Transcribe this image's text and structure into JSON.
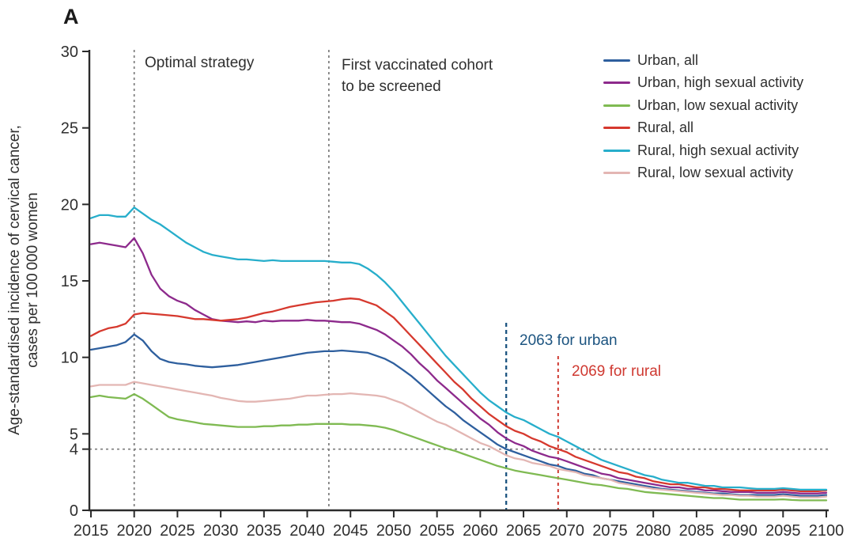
{
  "panel_label": "A",
  "colors": {
    "text": "#2f2f2f",
    "axis": "#2b2b2b",
    "gray_dash": "#7b7b7b",
    "urban_annotation": "#1c5480",
    "rural_annotation": "#cf3931"
  },
  "annotations": {
    "optimal_strategy": {
      "label": "Optimal strategy",
      "year": 2020
    },
    "first_screened": {
      "line1": "First vaccinated cohort",
      "line2": "to be screened",
      "year": 2042.5
    },
    "urban_elimination": {
      "label": "2063 for urban",
      "year": 2063
    },
    "rural_elimination": {
      "label": "2069 for rural",
      "year": 2069
    },
    "threshold_value": 4
  },
  "chart_data": {
    "type": "line",
    "title": "",
    "ylabel_line1": "Age-standardised incidence of cervical cancer,",
    "ylabel_line2": "cases per 100 000 women",
    "xlabel": "",
    "x_start": 2015,
    "x_end": 2100,
    "x_step": 1,
    "x_ticks": [
      2015,
      2020,
      2025,
      2030,
      2035,
      2040,
      2045,
      2050,
      2055,
      2060,
      2065,
      2070,
      2075,
      2080,
      2085,
      2090,
      2095,
      2100
    ],
    "y_ticks": [
      0,
      4,
      5,
      10,
      15,
      20,
      25,
      30
    ],
    "ylim": [
      0,
      30
    ],
    "grid": false,
    "legend_position": "top-right",
    "series": [
      {
        "name": "urban_all",
        "label": "Urban, all",
        "color": "#2e5f9e",
        "values": [
          10.5,
          10.6,
          10.7,
          10.8,
          11.0,
          11.5,
          11.1,
          10.4,
          9.9,
          9.7,
          9.6,
          9.55,
          9.45,
          9.4,
          9.35,
          9.4,
          9.45,
          9.5,
          9.6,
          9.7,
          9.8,
          9.9,
          10.0,
          10.1,
          10.2,
          10.3,
          10.35,
          10.4,
          10.4,
          10.45,
          10.4,
          10.35,
          10.3,
          10.1,
          9.9,
          9.6,
          9.2,
          8.8,
          8.3,
          7.8,
          7.3,
          6.8,
          6.4,
          5.9,
          5.5,
          5.1,
          4.7,
          4.3,
          4.0,
          3.8,
          3.6,
          3.4,
          3.2,
          3.0,
          2.9,
          2.7,
          2.6,
          2.4,
          2.3,
          2.1,
          2.0,
          1.9,
          1.8,
          1.7,
          1.6,
          1.5,
          1.4,
          1.35,
          1.3,
          1.25,
          1.2,
          1.15,
          1.1,
          1.1,
          1.05,
          1.0,
          1.0,
          1.0,
          1.0,
          1.0,
          1.05,
          1.0,
          0.95,
          0.95,
          0.95,
          1.0
        ]
      },
      {
        "name": "urban_high",
        "label": "Urban, high sexual activity",
        "color": "#8d2a8c",
        "values": [
          17.4,
          17.5,
          17.4,
          17.3,
          17.2,
          17.8,
          16.8,
          15.4,
          14.5,
          14.0,
          13.7,
          13.5,
          13.1,
          12.8,
          12.5,
          12.4,
          12.35,
          12.3,
          12.35,
          12.3,
          12.4,
          12.35,
          12.4,
          12.4,
          12.4,
          12.45,
          12.4,
          12.4,
          12.35,
          12.3,
          12.3,
          12.2,
          12.0,
          11.8,
          11.5,
          11.1,
          10.7,
          10.2,
          9.6,
          9.1,
          8.5,
          8.0,
          7.5,
          7.0,
          6.5,
          6.0,
          5.6,
          5.1,
          4.7,
          4.4,
          4.2,
          3.9,
          3.7,
          3.5,
          3.4,
          3.2,
          3.0,
          2.8,
          2.6,
          2.4,
          2.3,
          2.1,
          2.0,
          1.9,
          1.8,
          1.7,
          1.6,
          1.5,
          1.5,
          1.4,
          1.4,
          1.3,
          1.3,
          1.25,
          1.2,
          1.2,
          1.2,
          1.15,
          1.15,
          1.15,
          1.2,
          1.15,
          1.1,
          1.1,
          1.1,
          1.15
        ]
      },
      {
        "name": "urban_low",
        "label": "Urban, low sexual activity",
        "color": "#7fba52",
        "values": [
          7.4,
          7.5,
          7.4,
          7.35,
          7.3,
          7.6,
          7.3,
          6.9,
          6.5,
          6.1,
          5.95,
          5.85,
          5.75,
          5.65,
          5.6,
          5.55,
          5.5,
          5.45,
          5.45,
          5.45,
          5.5,
          5.5,
          5.55,
          5.55,
          5.6,
          5.6,
          5.65,
          5.65,
          5.65,
          5.65,
          5.6,
          5.6,
          5.55,
          5.5,
          5.4,
          5.25,
          5.05,
          4.85,
          4.65,
          4.45,
          4.25,
          4.05,
          3.9,
          3.7,
          3.5,
          3.3,
          3.1,
          2.9,
          2.75,
          2.6,
          2.5,
          2.4,
          2.3,
          2.2,
          2.1,
          2.0,
          1.9,
          1.8,
          1.7,
          1.65,
          1.55,
          1.45,
          1.4,
          1.3,
          1.2,
          1.15,
          1.1,
          1.05,
          1.0,
          0.95,
          0.9,
          0.85,
          0.8,
          0.8,
          0.75,
          0.7,
          0.7,
          0.7,
          0.7,
          0.7,
          0.72,
          0.68,
          0.65,
          0.65,
          0.65,
          0.65
        ]
      },
      {
        "name": "rural_all",
        "label": "Rural, all",
        "color": "#d6392e",
        "values": [
          11.4,
          11.7,
          11.9,
          12.0,
          12.2,
          12.8,
          12.9,
          12.85,
          12.8,
          12.75,
          12.7,
          12.6,
          12.5,
          12.5,
          12.45,
          12.4,
          12.45,
          12.5,
          12.6,
          12.75,
          12.9,
          13.0,
          13.15,
          13.3,
          13.4,
          13.5,
          13.6,
          13.65,
          13.7,
          13.8,
          13.85,
          13.8,
          13.6,
          13.4,
          13.0,
          12.6,
          12.0,
          11.4,
          10.8,
          10.2,
          9.6,
          9.0,
          8.4,
          7.9,
          7.3,
          6.8,
          6.3,
          5.9,
          5.5,
          5.2,
          5.0,
          4.7,
          4.5,
          4.2,
          4.0,
          3.8,
          3.5,
          3.3,
          3.1,
          2.9,
          2.7,
          2.5,
          2.4,
          2.2,
          2.1,
          1.9,
          1.8,
          1.7,
          1.7,
          1.6,
          1.5,
          1.5,
          1.4,
          1.4,
          1.35,
          1.3,
          1.3,
          1.3,
          1.3,
          1.3,
          1.35,
          1.3,
          1.25,
          1.25,
          1.25,
          1.3
        ]
      },
      {
        "name": "rural_high",
        "label": "Rural, high sexual activity",
        "color": "#27aecb",
        "values": [
          19.1,
          19.3,
          19.3,
          19.2,
          19.2,
          19.8,
          19.4,
          19.0,
          18.7,
          18.3,
          17.9,
          17.5,
          17.2,
          16.9,
          16.7,
          16.6,
          16.5,
          16.4,
          16.4,
          16.35,
          16.3,
          16.35,
          16.3,
          16.3,
          16.3,
          16.3,
          16.3,
          16.3,
          16.25,
          16.2,
          16.2,
          16.1,
          15.8,
          15.4,
          14.9,
          14.3,
          13.6,
          12.9,
          12.2,
          11.5,
          10.8,
          10.1,
          9.5,
          8.9,
          8.3,
          7.7,
          7.2,
          6.8,
          6.4,
          6.1,
          5.9,
          5.6,
          5.3,
          5.0,
          4.8,
          4.5,
          4.2,
          3.9,
          3.6,
          3.3,
          3.1,
          2.9,
          2.7,
          2.5,
          2.3,
          2.2,
          2.0,
          1.9,
          1.8,
          1.8,
          1.7,
          1.6,
          1.6,
          1.5,
          1.5,
          1.5,
          1.45,
          1.4,
          1.4,
          1.4,
          1.45,
          1.4,
          1.35,
          1.35,
          1.35,
          1.35
        ]
      },
      {
        "name": "rural_low",
        "label": "Rural, low sexual activity",
        "color": "#e3b6b3",
        "values": [
          8.1,
          8.2,
          8.2,
          8.2,
          8.2,
          8.4,
          8.3,
          8.2,
          8.1,
          8.0,
          7.9,
          7.8,
          7.7,
          7.6,
          7.5,
          7.35,
          7.25,
          7.15,
          7.1,
          7.1,
          7.15,
          7.2,
          7.25,
          7.3,
          7.4,
          7.5,
          7.5,
          7.55,
          7.6,
          7.6,
          7.65,
          7.6,
          7.55,
          7.5,
          7.4,
          7.2,
          7.0,
          6.7,
          6.4,
          6.1,
          5.8,
          5.6,
          5.3,
          5.0,
          4.7,
          4.4,
          4.2,
          3.9,
          3.6,
          3.4,
          3.3,
          3.1,
          3.0,
          2.9,
          2.7,
          2.6,
          2.5,
          2.3,
          2.2,
          2.1,
          2.0,
          1.8,
          1.7,
          1.6,
          1.5,
          1.4,
          1.35,
          1.3,
          1.25,
          1.2,
          1.15,
          1.1,
          1.05,
          1.0,
          1.0,
          0.95,
          0.95,
          0.9,
          0.9,
          0.9,
          0.95,
          0.9,
          0.85,
          0.85,
          0.85,
          0.9
        ]
      }
    ]
  }
}
